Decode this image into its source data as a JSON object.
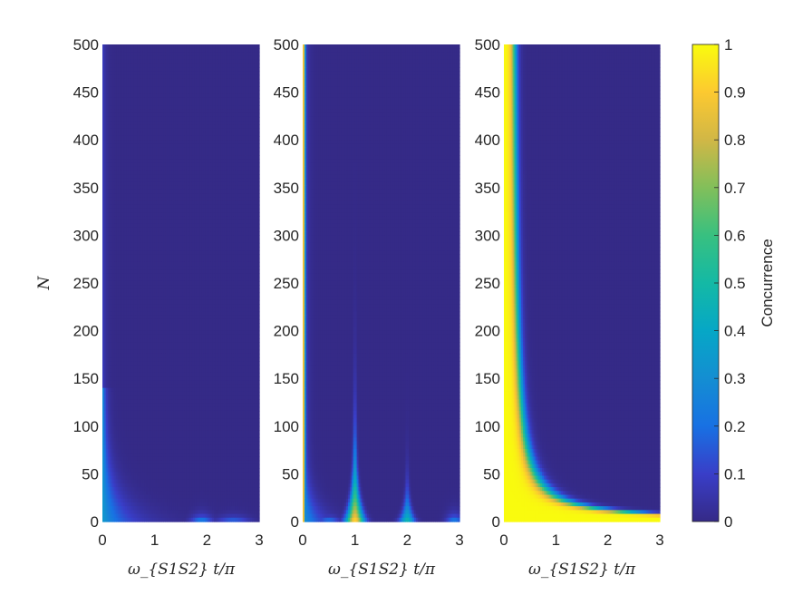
{
  "chart_data": {
    "type": "heatmap",
    "panels": [
      {
        "xlabel": "ω_{S1S2} t/π",
        "ylabel": "N",
        "xlim": [
          0,
          3
        ],
        "ylim": [
          0,
          500
        ],
        "x_ticks": [
          "0",
          "1",
          "2",
          "3"
        ],
        "y_ticks": [
          "0",
          "50",
          "100",
          "150",
          "200",
          "250",
          "300",
          "350",
          "400",
          "450",
          "500"
        ],
        "features": [
          {
            "kind": "decay-edge",
            "x_center": 0.0,
            "width_at_N0": 0.45,
            "width_decay": 0.03,
            "peak": 0.35
          },
          {
            "kind": "bump",
            "x_center": 1.9,
            "peak": 0.35,
            "N_extent": 12
          }
        ]
      },
      {
        "xlabel": "ω_{S1S2} t/π",
        "ylabel": "",
        "xlim": [
          0,
          3
        ],
        "ylim": [
          0,
          500
        ],
        "x_ticks": [
          "0",
          "1",
          "2",
          "3"
        ],
        "y_ticks": [
          "0",
          "50",
          "100",
          "150",
          "200",
          "250",
          "300",
          "350",
          "400",
          "450",
          "500"
        ],
        "features": [
          {
            "kind": "edge-column",
            "x_center": 0.0,
            "peak": 1.0
          },
          {
            "kind": "revival",
            "x_center": 1.0,
            "peak": 0.85,
            "N_extent": 170
          },
          {
            "kind": "revival",
            "x_center": 2.0,
            "peak": 0.45,
            "N_extent": 45
          },
          {
            "kind": "bump",
            "x_center": 3.0,
            "peak": 0.25,
            "N_extent": 12
          }
        ]
      },
      {
        "xlabel": "ω_{S1S2} t/π",
        "ylabel": "",
        "xlim": [
          0,
          3
        ],
        "ylim": [
          0,
          500
        ],
        "x_ticks": [
          "0",
          "1",
          "2",
          "3"
        ],
        "y_ticks": [
          "0",
          "50",
          "100",
          "150",
          "200",
          "250",
          "300",
          "350",
          "400",
          "450",
          "500"
        ],
        "features": [
          {
            "kind": "hyperbolic-decay",
            "boundary": "t ≈ 0.15 + 25/N",
            "peak": 1.0
          }
        ]
      }
    ],
    "colorbar": {
      "label": "Concurrence",
      "range": [
        0,
        1
      ],
      "ticks": [
        "0",
        "0.1",
        "0.2",
        "0.3",
        "0.4",
        "0.5",
        "0.6",
        "0.7",
        "0.8",
        "0.9",
        "1"
      ],
      "colormap": "parula"
    }
  },
  "colors": {
    "background": "#352a87",
    "axis": "#262626"
  }
}
